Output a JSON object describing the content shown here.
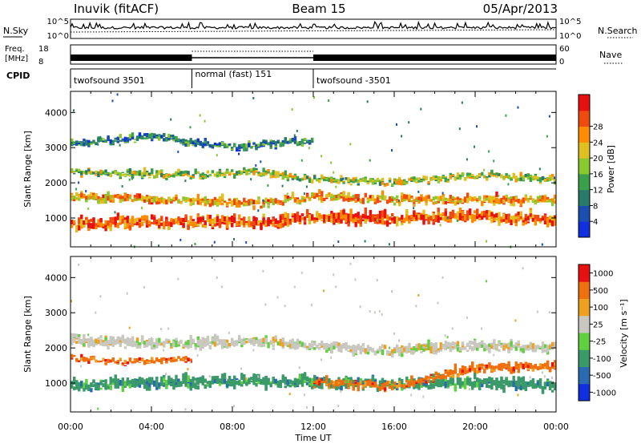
{
  "header": {
    "station": "Inuvik (fitACF)",
    "beam": "Beam 15",
    "date": "05/Apr/2013"
  },
  "strip": {
    "nsky_label": "N.Sky",
    "nsky_ticks": [
      "10^5",
      "10^0"
    ],
    "nsearch_label": "N.Search",
    "nsearch_ticks": [
      "10^5",
      "10^0"
    ],
    "freq_label": "Freq.",
    "freq_unit": "[MHz]",
    "freq_ticks": [
      "18",
      "8"
    ],
    "nave_label": "Nave",
    "nave_ticks": [
      "60",
      "0"
    ],
    "cpid_label": "CPID",
    "cpid_segments": [
      {
        "label": "twofsound 3501",
        "start": 0,
        "end": 6
      },
      {
        "label": "normal (fast) 151",
        "start": 6,
        "end": 12
      },
      {
        "label": "twofsound -3501",
        "start": 12,
        "end": 24
      }
    ]
  },
  "chart_data": [
    {
      "type": "heatmap",
      "quantity": "power",
      "ylabel": "Slant Range [km]",
      "y_ticks": [
        1000,
        2000,
        3000,
        4000
      ],
      "ylim": [
        180,
        4600
      ],
      "x_ticks": [
        "00:00",
        "04:00",
        "08:00",
        "12:00",
        "16:00",
        "20:00",
        "00:00"
      ],
      "xlim_hours": [
        0,
        24
      ],
      "colorbar_label": "Power [dB]",
      "colorbar_ticks": [
        4,
        8,
        12,
        16,
        20,
        24,
        28
      ],
      "colorbar_colors": [
        "#1030e0",
        "#1a4fb0",
        "#2a7a6a",
        "#3aa04a",
        "#8ac830",
        "#e0c020",
        "#ff8c00",
        "#f04a10",
        "#e81010"
      ],
      "bands": [
        {
          "t": [
            0,
            5,
            9,
            12,
            16,
            20,
            24
          ],
          "r": [
            800,
            900,
            850,
            1000,
            950,
            1050,
            900
          ],
          "w": 350,
          "level": 0.85
        },
        {
          "t": [
            0,
            5,
            9,
            12,
            16,
            20,
            24
          ],
          "r": [
            1600,
            1500,
            1400,
            1600,
            1500,
            1500,
            1500
          ],
          "w": 250,
          "level": 0.7
        },
        {
          "t": [
            0,
            5,
            9,
            12,
            16,
            20,
            24
          ],
          "r": [
            2300,
            2200,
            2300,
            2100,
            2000,
            2200,
            2100
          ],
          "w": 200,
          "level": 0.5
        },
        {
          "t": [
            0,
            4,
            8,
            12
          ],
          "r": [
            3100,
            3300,
            3000,
            3200
          ],
          "w": 200,
          "level": 0.25
        }
      ]
    },
    {
      "type": "heatmap",
      "quantity": "velocity",
      "ylabel": "Slant Range [km]",
      "y_ticks": [
        1000,
        2000,
        3000,
        4000
      ],
      "ylim": [
        180,
        4600
      ],
      "x_ticks": [
        "00:00",
        "04:00",
        "08:00",
        "12:00",
        "16:00",
        "20:00",
        "00:00"
      ],
      "xlabel": "Time UT",
      "xlim_hours": [
        0,
        24
      ],
      "colorbar_label": "Velocity [m s⁻¹]",
      "colorbar_ticks": [
        "1000",
        "500",
        "100",
        "25",
        "-25",
        "-100",
        "-500",
        "-1000"
      ],
      "colorbar_colors": [
        "#1030e0",
        "#2a6ab0",
        "#3a9a6a",
        "#60d040",
        "#c8c8c0",
        "#f0a020",
        "#f07010",
        "#e81010"
      ],
      "bands": [
        {
          "t": [
            0,
            5,
            9,
            12,
            16,
            20,
            24
          ],
          "r": [
            900,
            1000,
            1050,
            1000,
            950,
            1000,
            900
          ],
          "w": 350,
          "cls": 2
        },
        {
          "t": [
            0,
            5,
            9,
            12,
            16,
            20,
            24
          ],
          "r": [
            2200,
            2100,
            2150,
            2050,
            1900,
            2050,
            2000
          ],
          "w": 300,
          "cls": 4
        },
        {
          "t": [
            12,
            16,
            20,
            24
          ],
          "r": [
            1000,
            900,
            1400,
            1500
          ],
          "w": 250,
          "cls": 6
        },
        {
          "t": [
            0,
            3,
            6
          ],
          "r": [
            1700,
            1600,
            1650
          ],
          "w": 150,
          "cls": 6
        }
      ]
    }
  ]
}
